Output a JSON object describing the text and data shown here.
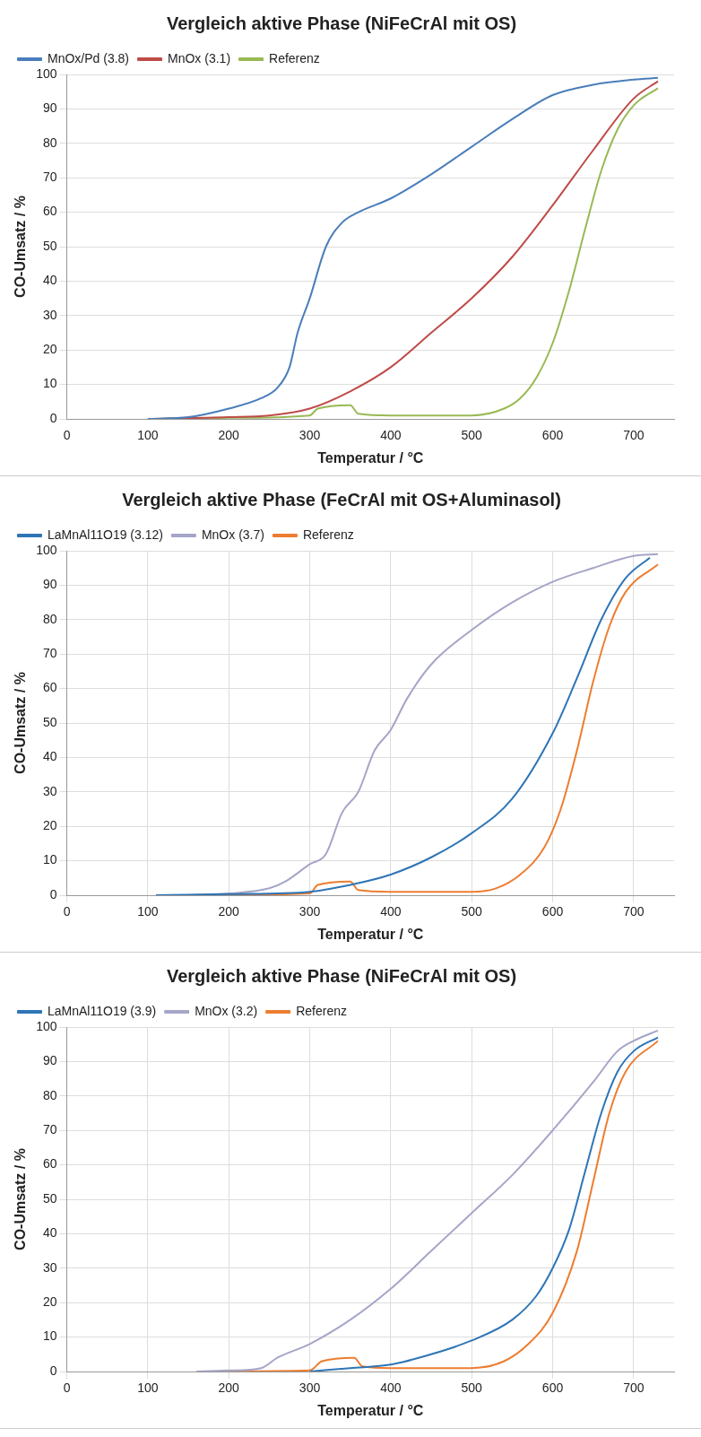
{
  "chart_data": [
    {
      "type": "line",
      "title": "Vergleich aktive Phase (NiFeCrAl mit OS)",
      "xlabel": "Temperatur / °C",
      "ylabel": "CO-Umsatz / %",
      "xlim": [
        0,
        750
      ],
      "xticks": [
        0,
        100,
        200,
        300,
        400,
        500,
        600,
        700
      ],
      "ylim": [
        0,
        100
      ],
      "yticks": [
        0,
        10,
        20,
        30,
        40,
        50,
        60,
        70,
        80,
        90,
        100
      ],
      "grid": "y",
      "legend": "top left",
      "marker": "none",
      "line_style": "solid",
      "series": [
        {
          "name": "MnOx/Pd (3.8)",
          "color": "#4a7ebb",
          "x": [
            100,
            150,
            200,
            240,
            260,
            275,
            285,
            300,
            320,
            340,
            360,
            400,
            450,
            500,
            550,
            600,
            650,
            700,
            730
          ],
          "values": [
            0,
            0.5,
            3,
            6,
            9,
            15,
            25,
            35,
            50,
            57,
            60,
            64,
            71,
            79,
            87,
            94,
            97,
            98.5,
            99
          ]
        },
        {
          "name": "MnOx (3.1)",
          "color": "#be4b48",
          "x": [
            100,
            200,
            250,
            300,
            350,
            400,
            450,
            500,
            550,
            600,
            650,
            700,
            730
          ],
          "values": [
            0,
            0.5,
            1,
            3,
            8,
            15,
            25,
            35,
            47,
            62,
            78,
            93,
            98
          ]
        },
        {
          "name": "Referenz",
          "color": "#98b954",
          "x": [
            100,
            200,
            300,
            310,
            350,
            360,
            400,
            500,
            540,
            560,
            580,
            600,
            620,
            640,
            660,
            680,
            700,
            730
          ],
          "values": [
            0,
            0.3,
            1,
            3,
            4,
            1.5,
            1,
            1,
            3,
            6,
            12,
            22,
            37,
            55,
            72,
            84,
            91,
            96
          ]
        }
      ]
    },
    {
      "type": "line",
      "title": "Vergleich aktive Phase (FeCrAl mit OS+Aluminasol)",
      "xlabel": "Temperatur / °C",
      "ylabel": "CO-Umsatz / %",
      "xlim": [
        0,
        750
      ],
      "xticks": [
        0,
        100,
        200,
        300,
        400,
        500,
        600,
        700
      ],
      "ylim": [
        0,
        100
      ],
      "yticks": [
        0,
        10,
        20,
        30,
        40,
        50,
        60,
        70,
        80,
        90,
        100
      ],
      "grid": true,
      "legend": "top left",
      "marker": "none",
      "line_style": "solid",
      "series": [
        {
          "name": "LaMnAl11O19 (3.12)",
          "color": "#2e75b6",
          "x": [
            110,
            200,
            300,
            350,
            400,
            450,
            500,
            550,
            600,
            630,
            660,
            690,
            720
          ],
          "values": [
            0,
            0.3,
            1,
            3,
            6,
            11,
            18,
            28,
            47,
            63,
            80,
            92,
            98
          ]
        },
        {
          "name": "MnOx (3.7)",
          "color": "#a5a5c8",
          "x": [
            150,
            200,
            250,
            270,
            300,
            320,
            340,
            360,
            380,
            400,
            420,
            450,
            500,
            550,
            600,
            650,
            700,
            730
          ],
          "values": [
            0,
            0.5,
            2,
            4,
            9,
            12,
            24,
            30,
            42,
            48,
            57,
            67,
            77,
            85,
            91,
            95,
            98.5,
            99
          ]
        },
        {
          "name": "Referenz",
          "color": "#ed7d31",
          "x": [
            150,
            300,
            310,
            350,
            360,
            400,
            500,
            530,
            560,
            590,
            610,
            630,
            650,
            670,
            690,
            730
          ],
          "values": [
            0,
            0.5,
            3,
            4,
            1.5,
            1,
            1,
            2,
            6,
            14,
            25,
            42,
            62,
            78,
            88,
            96
          ]
        }
      ]
    },
    {
      "type": "line",
      "title": "Vergleich aktive Phase (NiFeCrAl mit OS)",
      "xlabel": "Temperatur / °C",
      "ylabel": "CO-Umsatz / %",
      "xlim": [
        0,
        750
      ],
      "xticks": [
        0,
        100,
        200,
        300,
        400,
        500,
        600,
        700
      ],
      "ylim": [
        0,
        100
      ],
      "yticks": [
        0,
        10,
        20,
        30,
        40,
        50,
        60,
        70,
        80,
        90,
        100
      ],
      "grid": true,
      "legend": "top left",
      "marker": "none",
      "line_style": "solid",
      "series": [
        {
          "name": "LaMnAl11O19 (3.9)",
          "color": "#2e75b6",
          "x": [
            300,
            350,
            400,
            450,
            500,
            550,
            580,
            600,
            620,
            640,
            660,
            680,
            700,
            730
          ],
          "values": [
            0,
            1,
            2,
            5,
            9,
            15,
            22,
            30,
            41,
            58,
            75,
            87,
            93,
            97
          ]
        },
        {
          "name": "MnOx (3.2)",
          "color": "#a5a5c8",
          "x": [
            160,
            200,
            240,
            260,
            300,
            350,
            400,
            450,
            500,
            550,
            600,
            650,
            680,
            700,
            730
          ],
          "values": [
            0,
            0.3,
            1,
            4,
            8,
            15,
            24,
            35,
            46,
            57,
            70,
            84,
            93,
            96,
            99
          ]
        },
        {
          "name": "Referenz",
          "color": "#ed7d31",
          "x": [
            160,
            300,
            315,
            355,
            365,
            400,
            500,
            540,
            570,
            600,
            630,
            650,
            670,
            690,
            730
          ],
          "values": [
            0,
            0.3,
            3,
            4,
            1.5,
            1,
            1,
            3,
            8,
            17,
            35,
            55,
            75,
            87,
            96
          ]
        }
      ]
    }
  ]
}
